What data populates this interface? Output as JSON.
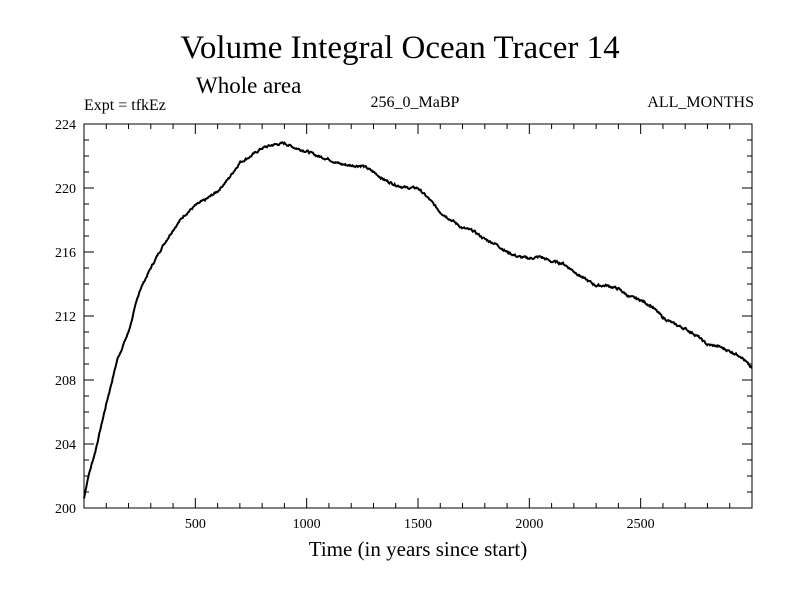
{
  "chart_data": {
    "type": "line",
    "title": "Volume Integral Ocean Tracer 14",
    "subtitle": "Whole area",
    "left_label": "Expt = tfkEz",
    "center_label": "256_0_MaBP",
    "right_label": "ALL_MONTHS",
    "xlabel": "Time (in years since start)",
    "ylabel": "",
    "xlim": [
      0,
      3000
    ],
    "ylim": [
      200,
      224
    ],
    "x_ticks": [
      500,
      1000,
      1500,
      2000,
      2500
    ],
    "y_ticks": [
      200,
      204,
      208,
      212,
      216,
      220,
      224
    ],
    "grid": false,
    "legend": "none",
    "line_color": "#000000",
    "series": [
      {
        "x": [
          0,
          20,
          50,
          100,
          150,
          200,
          250,
          300,
          350,
          400,
          450,
          500,
          550,
          600,
          650,
          700,
          750,
          800,
          850,
          900,
          950,
          1000,
          1050,
          1100,
          1150,
          1200,
          1250,
          1300,
          1350,
          1400,
          1450,
          1500,
          1550,
          1600,
          1650,
          1700,
          1750,
          1800,
          1850,
          1900,
          1950,
          2000,
          2050,
          2100,
          2150,
          2200,
          2250,
          2300,
          2350,
          2400,
          2450,
          2500,
          2550,
          2600,
          2650,
          2700,
          2750,
          2800,
          2850,
          2900,
          2950,
          3000
        ],
        "values": [
          200.6,
          202.0,
          203.5,
          206.5,
          209.3,
          211.0,
          213.6,
          215.0,
          216.3,
          217.4,
          218.3,
          218.9,
          219.3,
          219.8,
          220.6,
          221.6,
          222.0,
          222.5,
          222.7,
          222.8,
          222.5,
          222.3,
          222.0,
          221.8,
          221.5,
          221.4,
          221.4,
          221.0,
          220.5,
          220.2,
          220.0,
          220.0,
          219.3,
          218.5,
          218.0,
          217.5,
          217.3,
          216.8,
          216.5,
          216.0,
          215.7,
          215.6,
          215.7,
          215.4,
          215.3,
          214.8,
          214.3,
          213.9,
          213.9,
          213.7,
          213.2,
          213.0,
          212.6,
          211.9,
          211.5,
          211.2,
          210.8,
          210.2,
          210.1,
          209.8,
          209.5,
          208.7
        ]
      }
    ]
  }
}
